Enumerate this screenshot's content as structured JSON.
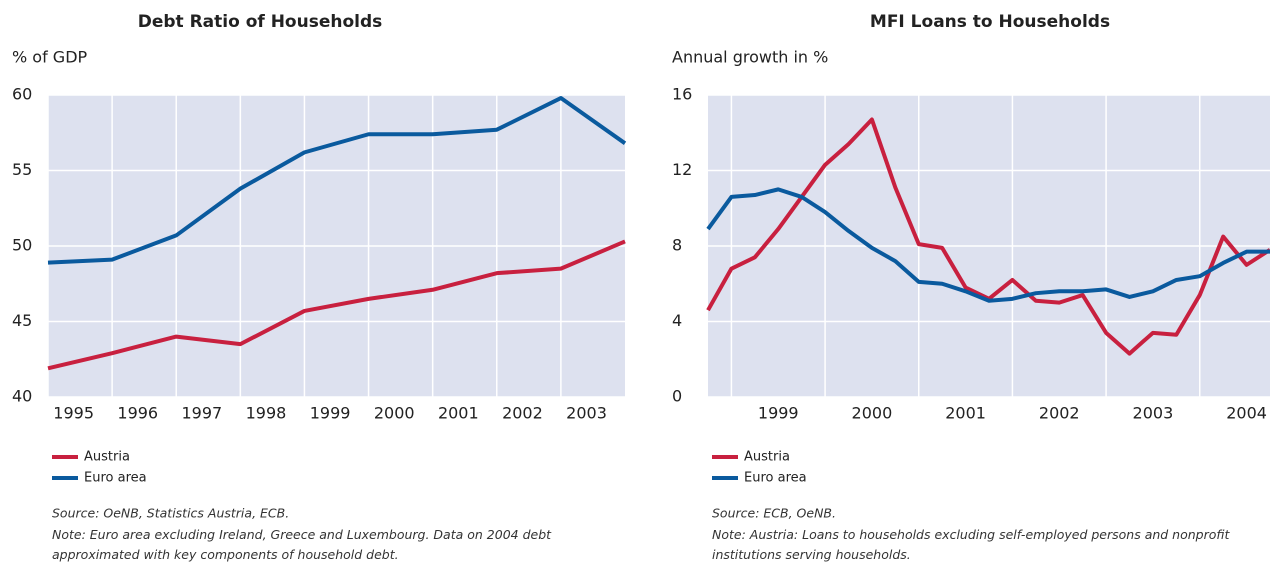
{
  "chart_data": [
    {
      "type": "line",
      "title": "Debt Ratio of Households",
      "y_label": "% of GDP",
      "x": [
        1995,
        1996,
        1997,
        1998,
        1999,
        2000,
        2001,
        2002,
        2003,
        2004
      ],
      "xlim": [
        1995,
        2004
      ],
      "xticks": [
        1995,
        1996,
        1997,
        1998,
        1999,
        2000,
        2001,
        2002,
        2003
      ],
      "ylim": [
        40,
        60
      ],
      "yticks": [
        40,
        45,
        50,
        55,
        60
      ],
      "grid": true,
      "series": [
        {
          "name": "Austria",
          "color": "#c8203f",
          "values": [
            41.9,
            42.9,
            44.0,
            43.5,
            45.7,
            46.5,
            47.1,
            48.2,
            48.5,
            50.3
          ]
        },
        {
          "name": "Euro area",
          "color": "#0a5a9e",
          "values": [
            48.9,
            49.1,
            50.7,
            53.8,
            56.2,
            57.4,
            57.4,
            57.7,
            59.8,
            56.8
          ]
        }
      ],
      "source": "Source: OeNB, Statistics Austria, ECB.",
      "note": "Note: Euro area excluding Ireland, Greece and Luxembourg. Data on 2004 debt approximated with key components of household debt."
    },
    {
      "type": "line",
      "title": "MFI Loans to Households",
      "y_label": "Annual growth in %",
      "x": [
        1998.75,
        1999,
        1999.25,
        1999.5,
        1999.75,
        2000,
        2000.25,
        2000.5,
        2000.75,
        2001,
        2001.25,
        2001.5,
        2001.75,
        2002,
        2002.25,
        2002.5,
        2002.75,
        2003,
        2003.25,
        2003.5,
        2003.75,
        2004,
        2004.25,
        2004.5,
        2004.75
      ],
      "xlim": [
        1998.75,
        2004.75
      ],
      "xticks": [
        1999,
        2000,
        2001,
        2002,
        2003,
        2004
      ],
      "ylim": [
        0,
        16
      ],
      "yticks": [
        0,
        4,
        8,
        12,
        16
      ],
      "grid": true,
      "series": [
        {
          "name": "Austria",
          "color": "#c8203f",
          "values": [
            4.6,
            6.8,
            7.4,
            8.9,
            10.6,
            12.3,
            13.4,
            14.7,
            11.1,
            8.1,
            7.9,
            5.8,
            5.2,
            6.2,
            5.1,
            5.0,
            5.4,
            3.4,
            2.3,
            3.4,
            3.3,
            5.4,
            8.5,
            7.0,
            7.8
          ]
        },
        {
          "name": "Euro area",
          "color": "#0a5a9e",
          "values": [
            8.9,
            10.6,
            10.7,
            11.0,
            10.6,
            9.8,
            8.8,
            7.9,
            7.2,
            6.1,
            6.0,
            5.6,
            5.1,
            5.2,
            5.5,
            5.6,
            5.6,
            5.7,
            5.3,
            5.6,
            6.2,
            6.4,
            7.1,
            7.7,
            7.7
          ]
        }
      ],
      "source": "Source: ECB, OeNB.",
      "note": "Note: Austria: Loans to households excluding self-employed persons and nonprofit institutions serving households."
    }
  ]
}
